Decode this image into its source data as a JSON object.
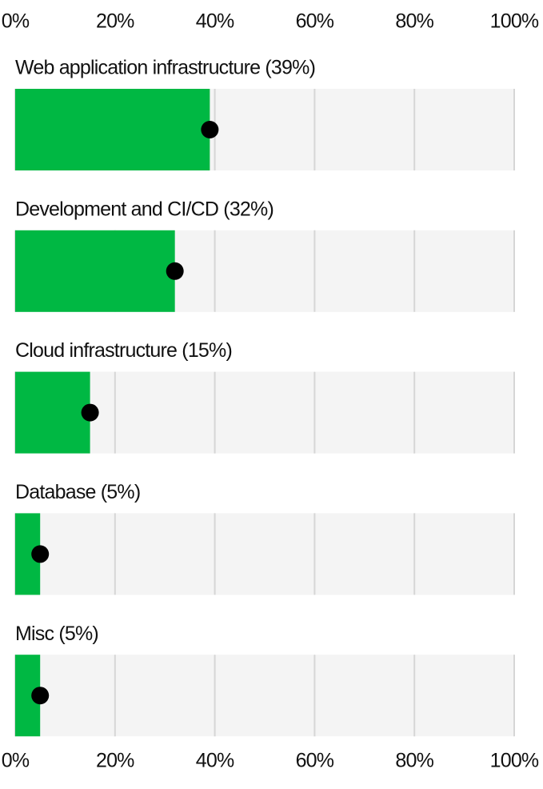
{
  "chart_data": {
    "type": "bar",
    "categories": [
      "Web application infrastructure (39%)",
      "Development and CI/CD (32%)",
      "Cloud infrastructure (15%)",
      "Database (5%)",
      "Misc (5%)"
    ],
    "values": [
      39,
      32,
      15,
      5,
      5
    ],
    "color": "#00b843",
    "xlim": [
      0,
      100
    ],
    "xticks": [
      {
        "value": 0,
        "label": "0%"
      },
      {
        "value": 20,
        "label": "20%"
      },
      {
        "value": 40,
        "label": "40%"
      },
      {
        "value": 60,
        "label": "60%"
      },
      {
        "value": 80,
        "label": "80%"
      },
      {
        "value": 100,
        "label": "100%"
      }
    ],
    "grid": true
  }
}
